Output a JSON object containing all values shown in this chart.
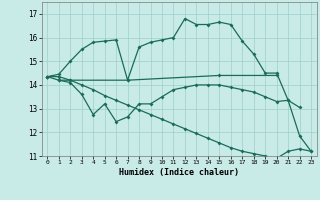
{
  "xlabel": "Humidex (Indice chaleur)",
  "bg_color": "#c8ebe8",
  "grid_color": "#9ececa",
  "line_color": "#1a6b5a",
  "xlim": [
    -0.5,
    23.5
  ],
  "ylim": [
    11,
    17.5
  ],
  "yticks": [
    11,
    12,
    13,
    14,
    15,
    16,
    17
  ],
  "xticks": [
    0,
    1,
    2,
    3,
    4,
    5,
    6,
    7,
    8,
    9,
    10,
    11,
    12,
    13,
    14,
    15,
    16,
    17,
    18,
    19,
    20,
    21,
    22,
    23
  ],
  "line1_x": [
    0,
    1,
    2,
    3,
    4,
    5,
    6,
    7,
    8,
    9,
    10,
    11,
    12,
    13,
    14,
    15,
    16,
    17,
    18,
    19,
    20,
    21,
    22
  ],
  "line1_y": [
    14.35,
    14.45,
    15.0,
    15.5,
    15.8,
    15.85,
    15.9,
    14.2,
    15.6,
    15.8,
    15.9,
    16.0,
    16.8,
    16.55,
    16.55,
    16.65,
    16.55,
    15.85,
    15.3,
    14.5,
    14.5,
    13.35,
    13.05
  ],
  "line2_x": [
    0,
    1,
    2,
    7,
    15,
    20
  ],
  "line2_y": [
    14.35,
    14.2,
    14.2,
    14.2,
    14.4,
    14.4
  ],
  "line3_x": [
    1,
    2,
    3,
    4,
    5,
    6,
    7,
    8,
    9,
    10,
    11,
    12,
    13,
    14,
    15,
    16,
    17,
    18,
    19,
    20,
    21,
    22,
    23
  ],
  "line3_y": [
    14.2,
    14.1,
    13.6,
    12.75,
    13.2,
    12.45,
    12.65,
    13.2,
    13.2,
    13.5,
    13.8,
    13.9,
    14.0,
    14.0,
    14.0,
    13.9,
    13.8,
    13.7,
    13.5,
    13.3,
    13.35,
    11.85,
    11.2
  ],
  "line4_x": [
    0,
    1,
    2,
    3,
    4,
    5,
    6,
    7,
    8,
    9,
    10,
    11,
    12,
    13,
    14,
    15,
    16,
    17,
    18,
    19,
    20,
    21,
    22,
    23
  ],
  "line4_y": [
    14.35,
    14.35,
    14.2,
    14.0,
    13.8,
    13.55,
    13.35,
    13.15,
    12.95,
    12.75,
    12.55,
    12.35,
    12.15,
    11.95,
    11.75,
    11.55,
    11.35,
    11.2,
    11.1,
    11.0,
    10.9,
    11.2,
    11.3,
    11.2
  ]
}
